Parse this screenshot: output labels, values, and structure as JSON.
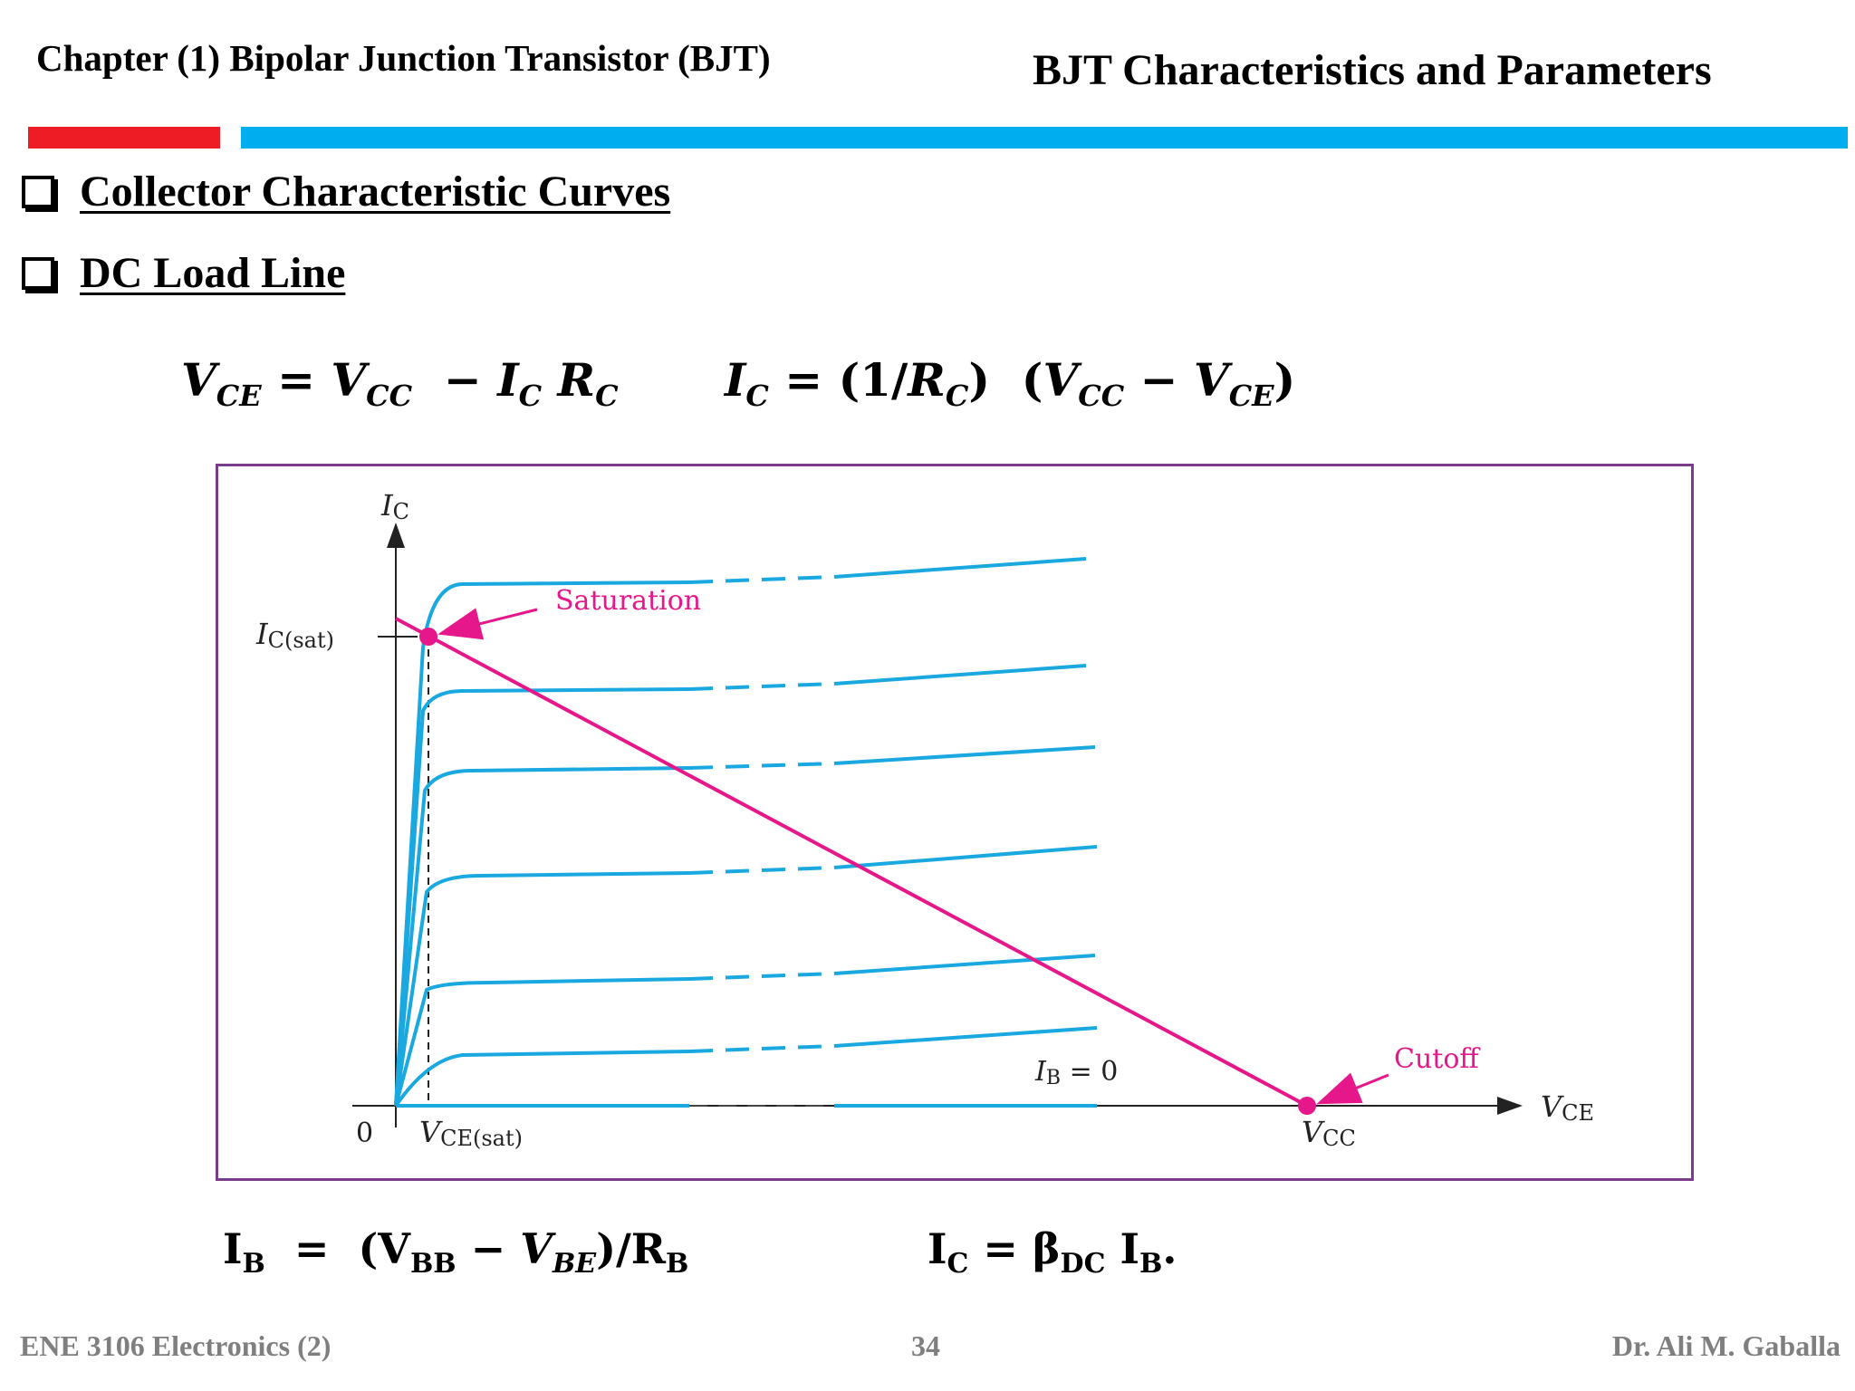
{
  "header": {
    "chapter": "Chapter (1)   Bipolar Junction Transistor (BJT)",
    "section_title": "BJT Characteristics and Parameters"
  },
  "bullets": [
    {
      "label": "Collector Characteristic Curves"
    },
    {
      "label": "DC Load Line"
    }
  ],
  "equations": {
    "eq1": {
      "lhs": "V",
      "lhs_sub": "CE",
      "eq": " = ",
      "t1": "V",
      "t1_sub": "CC",
      "minus": "  − ",
      "t2": "I",
      "t2_sub": "C",
      "t3": " R",
      "t3_sub": "C"
    },
    "eq2": {
      "lhs": "I",
      "lhs_sub": "C",
      "rest1": " = (1/",
      "r": "R",
      "r_sub": "C",
      "rest2": ")  (",
      "v1": "V",
      "v1_sub": "CC",
      "minus": " − ",
      "v2": "V",
      "v2_sub": "CE",
      "close": ")"
    },
    "eq3": {
      "lhs": "I",
      "lhs_sub": "B",
      "rest1": "  =  (V",
      "vbb_sub": "BB",
      "minus": " − ",
      "vbe": "V",
      "vbe_sub": "BE",
      "rest2": ")/R",
      "rb_sub": "B"
    },
    "eq4": {
      "lhs": "I",
      "lhs_sub": "C",
      "rest1": " = β",
      "beta_sub": "DC",
      "rest2": " I",
      "ib_sub": "B",
      "end": "."
    }
  },
  "figure": {
    "y_axis_label": "I",
    "y_axis_sub": "C",
    "ic_sat_label": "I",
    "ic_sat_sub": "C(sat)",
    "origin_label": "0",
    "vce_sat_label": "V",
    "vce_sat_sub": "CE(sat)",
    "vcc_label": "V",
    "vcc_sub": "CC",
    "x_axis_label": "V",
    "x_axis_sub": "CE",
    "saturation_label": "Saturation",
    "cutoff_label": "Cutoff",
    "ib0_label": "I",
    "ib0_sub": "B",
    "ib0_rest": " = 0",
    "colors": {
      "curves": "#1aa8e0",
      "load_line": "#e6178a",
      "frame": "#7b3c8c"
    }
  },
  "footer": {
    "course": "ENE 3106 Electronics  (2)",
    "page": "34",
    "author": "Dr. Ali M. Gaballa"
  }
}
